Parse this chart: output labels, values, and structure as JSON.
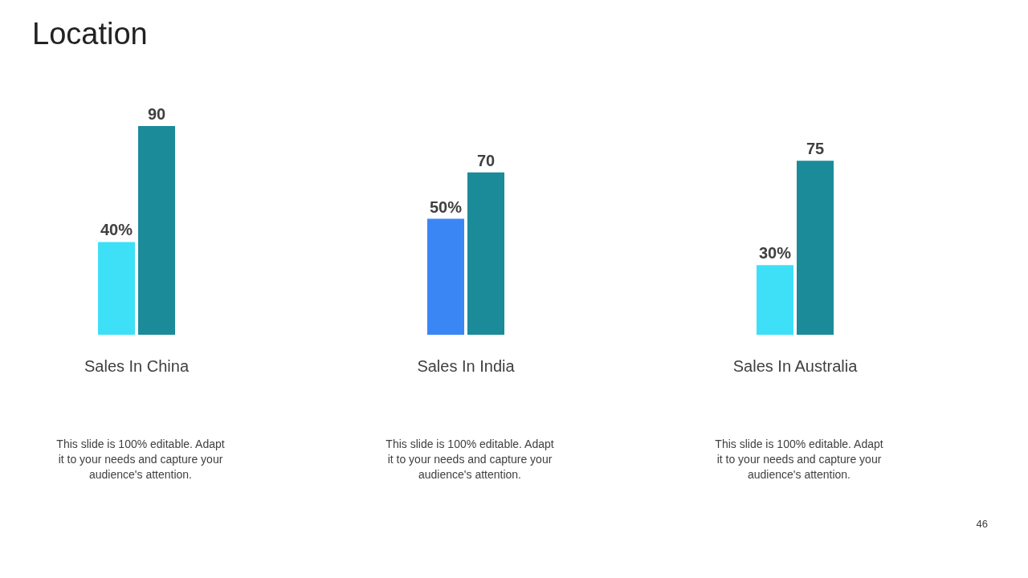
{
  "chart_data": [
    {
      "type": "bar",
      "title": "Location",
      "categories": [
        null,
        null
      ],
      "values": [
        40,
        90
      ],
      "value_labels": [
        "40%",
        "90"
      ],
      "colors": [
        "#3ee0f8",
        "#1b8b99"
      ],
      "annotations": [
        "Sales In China",
        "This slide is 100% editable. Adapt it to your needs and capture your audience's attention."
      ]
    },
    {
      "type": "bar",
      "categories": [
        null,
        null
      ],
      "values": [
        50,
        70
      ],
      "value_labels": [
        "50%",
        "70"
      ],
      "colors": [
        "#3b86f5",
        "#1b8b99"
      ],
      "annotations": [
        "Sales In India",
        "This slide is 100% editable. Adapt it to your needs and capture your audience's attention."
      ]
    },
    {
      "type": "bar",
      "categories": [
        null,
        null
      ],
      "values": [
        30,
        75
      ],
      "value_labels": [
        "30%",
        "75"
      ],
      "colors": [
        "#3ee0f8",
        "#1b8b99"
      ],
      "annotations": [
        "Sales In Australia",
        "This slide is 100% editable. Adapt it to your needs and capture your audience's attention.",
        "46"
      ]
    }
  ]
}
